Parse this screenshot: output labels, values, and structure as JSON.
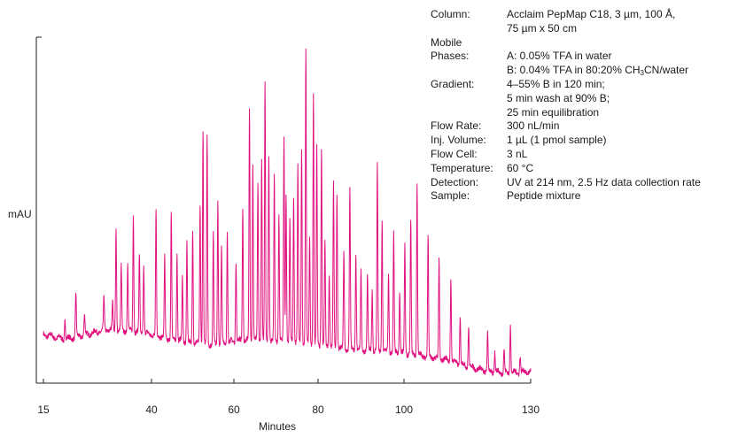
{
  "chart_data": {
    "type": "line",
    "title": "",
    "xlabel": "Minutes",
    "ylabel": "mAU",
    "xlim": [
      15,
      130
    ],
    "ylim": [
      0,
      100
    ],
    "xticks": [
      15,
      40,
      60,
      80,
      100,
      130
    ],
    "grid": false,
    "series": [
      {
        "color": "#e0117f",
        "baseline": [
          [
            15,
            14.5
          ],
          [
            20,
            13
          ],
          [
            25,
            14.5
          ],
          [
            30,
            16
          ],
          [
            35,
            15.5
          ],
          [
            40,
            14.5
          ],
          [
            45,
            13
          ],
          [
            50,
            12
          ],
          [
            55,
            11.5
          ],
          [
            60,
            12.5
          ],
          [
            65,
            13
          ],
          [
            70,
            12.5
          ],
          [
            75,
            12.5
          ],
          [
            80,
            11.5
          ],
          [
            85,
            10.5
          ],
          [
            90,
            10
          ],
          [
            95,
            9.5
          ],
          [
            100,
            9
          ],
          [
            105,
            8
          ],
          [
            110,
            7
          ],
          [
            115,
            5
          ],
          [
            120,
            3.5
          ],
          [
            125,
            3
          ],
          [
            130,
            3.5
          ]
        ],
        "peaks": [
          [
            20,
            6
          ],
          [
            22.5,
            13
          ],
          [
            24.5,
            6
          ],
          [
            29,
            10
          ],
          [
            31,
            8
          ],
          [
            31.8,
            30
          ],
          [
            33,
            19
          ],
          [
            34.5,
            20
          ],
          [
            35.8,
            35
          ],
          [
            37.2,
            23
          ],
          [
            38.2,
            20
          ],
          [
            41.1,
            37
          ],
          [
            43.2,
            24
          ],
          [
            44.8,
            38
          ],
          [
            46.2,
            26
          ],
          [
            47.5,
            19
          ],
          [
            48.6,
            30
          ],
          [
            50,
            34
          ],
          [
            51.8,
            41
          ],
          [
            52.5,
            64
          ],
          [
            53.5,
            62
          ],
          [
            55,
            33
          ],
          [
            56.1,
            43
          ],
          [
            57,
            28
          ],
          [
            58.4,
            33
          ],
          [
            60.5,
            24
          ],
          [
            62.1,
            39
          ],
          [
            63.7,
            69
          ],
          [
            64.5,
            52
          ],
          [
            65.7,
            46
          ],
          [
            66.6,
            54
          ],
          [
            67.4,
            76
          ],
          [
            68.3,
            55
          ],
          [
            69.6,
            49
          ],
          [
            70.7,
            38
          ],
          [
            71.9,
            61
          ],
          [
            72.4,
            44
          ],
          [
            73.3,
            36
          ],
          [
            74.2,
            43
          ],
          [
            75.2,
            52
          ],
          [
            76.1,
            58
          ],
          [
            77.1,
            87
          ],
          [
            78,
            31
          ],
          [
            78.9,
            74
          ],
          [
            79.7,
            59
          ],
          [
            80.8,
            59
          ],
          [
            81.6,
            31
          ],
          [
            82.6,
            22
          ],
          [
            83.6,
            49
          ],
          [
            84.4,
            46
          ],
          [
            86,
            29
          ],
          [
            87.4,
            48
          ],
          [
            88.8,
            28
          ],
          [
            90,
            23
          ],
          [
            91.5,
            22
          ],
          [
            92.6,
            18
          ],
          [
            93.8,
            55
          ],
          [
            94.9,
            39
          ],
          [
            96.4,
            23
          ],
          [
            97.6,
            35
          ],
          [
            99,
            18
          ],
          [
            100.2,
            32
          ],
          [
            101.6,
            40
          ],
          [
            103.1,
            51
          ],
          [
            105.7,
            36
          ],
          [
            108.3,
            29
          ],
          [
            111.1,
            25
          ],
          [
            113.3,
            14
          ],
          [
            115.3,
            12
          ],
          [
            119.8,
            11
          ],
          [
            121.5,
            6
          ],
          [
            123.7,
            7
          ],
          [
            125.2,
            15
          ],
          [
            127.5,
            5
          ]
        ]
      }
    ]
  },
  "conditions": {
    "column_label": "Column:",
    "column_line1": "Acclaim PepMap C18, 3 µm, 100 Å,",
    "column_line2": "75 µm x 50 cm",
    "mobile_label1": "Mobile",
    "mobile_label2": "Phases:",
    "phase_a": "A: 0.05% TFA in water",
    "phase_b_prefix": "B: 0.04% TFA in 80:20% CH",
    "phase_b_sub": "3",
    "phase_b_suffix": "CN/water",
    "gradient_label": "Gradient:",
    "gradient_line1": "4–55% B in 120 min;",
    "gradient_line2": "5 min wash at 90% B;",
    "gradient_line3": "25 min equilibration",
    "flow_rate_label": "Flow Rate:",
    "flow_rate_value": "300 nL/min",
    "inj_volume_label": "Inj. Volume:",
    "inj_volume_value": "1 µL (1 pmol sample)",
    "flow_cell_label": "Flow Cell:",
    "flow_cell_value": "3 nL",
    "temperature_label": "Temperature:",
    "temperature_value": "60 °C",
    "detection_label": "Detection:",
    "detection_value": "UV at 214 nm, 2.5 Hz data collection rate",
    "sample_label": "Sample:",
    "sample_value": "Peptide mixture"
  }
}
